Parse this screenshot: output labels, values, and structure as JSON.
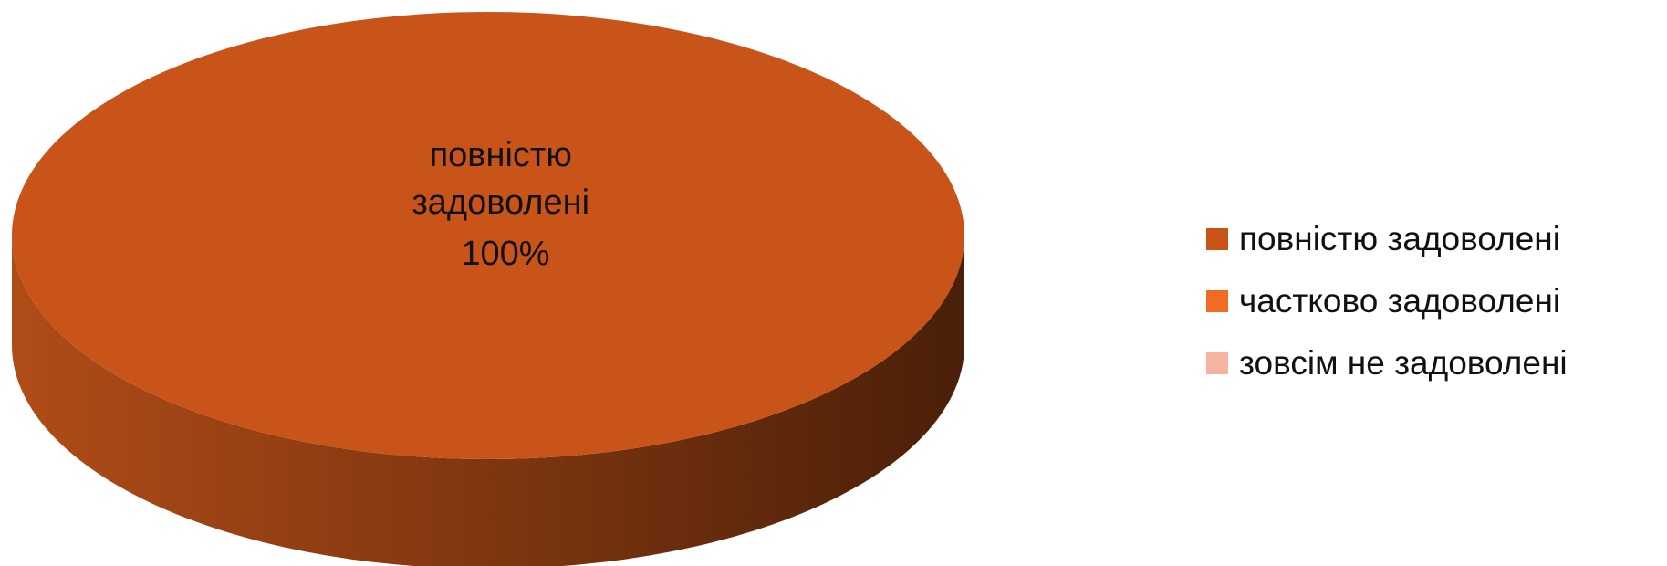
{
  "chart_data": {
    "type": "pie",
    "title": "",
    "style": "3d",
    "categories": [
      "повністю задоволені",
      "частково задоволені",
      "зовсім не задоволені"
    ],
    "values": [
      100,
      0,
      0
    ],
    "data_labels": [
      {
        "lines": [
          "повністю",
          "задоволені",
          "100%"
        ]
      }
    ],
    "colors": [
      "#C9541A",
      "#F26B22",
      "#F7B3A2"
    ],
    "side_color_light": "#B04C17",
    "side_color_dark": "#4A1F08",
    "legend_position": "right",
    "legend": [
      {
        "label": "повністю задоволені",
        "color": "#C9541A"
      },
      {
        "label": "частково задоволені",
        "color": "#F26B22"
      },
      {
        "label": "зовсім не задоволені",
        "color": "#F7B3A2"
      }
    ]
  }
}
